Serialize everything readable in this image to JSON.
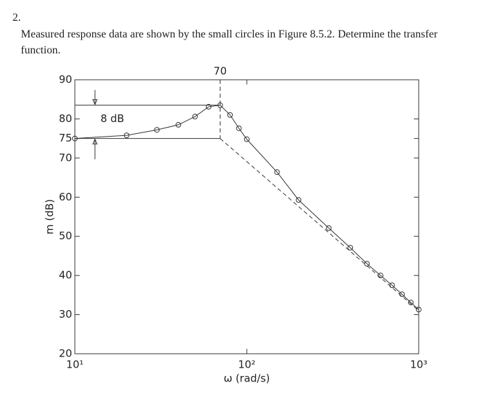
{
  "problem": {
    "number": "2.",
    "text": "Measured response data are shown by the small circles in Figure 8.5.2. Determine the transfer function."
  },
  "chart_data": {
    "type": "line",
    "xlabel": "ω (rad/s)",
    "ylabel": "m (dB)",
    "xscale": "log",
    "x": [
      10,
      20,
      30,
      40,
      50,
      60,
      70,
      80,
      90,
      100,
      150,
      200,
      300,
      400,
      500,
      600,
      700,
      800,
      900,
      1000
    ],
    "series": [
      {
        "color": "#333333",
        "marker": "circle",
        "values": [
          75,
          75.8,
          77.2,
          78.5,
          80.6,
          83.1,
          83.5,
          81,
          77.6,
          74.8,
          66.4,
          59.3,
          52.1,
          47.1,
          43,
          40,
          37.5,
          35.2,
          33.1,
          31.3
        ]
      }
    ],
    "asymptote": {
      "x": [
        10,
        70,
        1000
      ],
      "values": [
        75,
        75,
        31
      ],
      "styles": [
        "solid",
        "dashed"
      ]
    },
    "annotations": [
      {
        "text": "70",
        "x": 70
      },
      {
        "text": "8 dB",
        "y": [
          75,
          83.5
        ]
      }
    ],
    "xlim": [
      10,
      1000
    ],
    "xticks": [
      {
        "value": 10,
        "label": "10¹"
      },
      {
        "value": 100,
        "label": "10²"
      },
      {
        "value": 1000,
        "label": "10³"
      }
    ],
    "ylim": [
      20,
      90
    ],
    "yticks": [
      20,
      30,
      40,
      50,
      60,
      70,
      75,
      80,
      90
    ]
  }
}
